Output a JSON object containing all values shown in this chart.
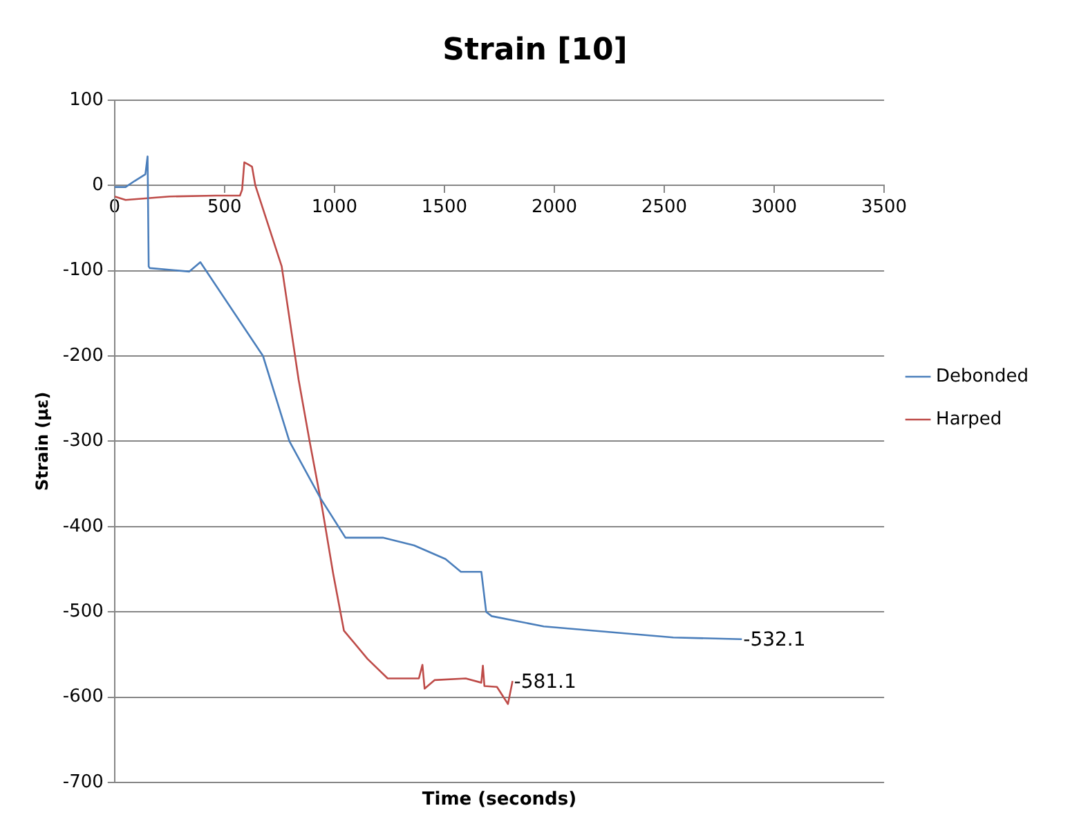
{
  "chart_data": {
    "type": "line",
    "title": "Strain [10]",
    "xlabel": "Time (seconds)",
    "ylabel": "Strain (µε)",
    "xlim": [
      0,
      3500
    ],
    "xticks": [
      0,
      500,
      1000,
      1500,
      2000,
      2500,
      3000,
      3500
    ],
    "ylim": [
      -700,
      100
    ],
    "yticks": [
      -700,
      -600,
      -500,
      -400,
      -300,
      -200,
      -100,
      0,
      100
    ],
    "grid": "y",
    "legend": "right",
    "marker": "none",
    "series": [
      {
        "name": "Debonded",
        "color": "#4a7ebb",
        "x": [
          0,
          50,
          90,
          140,
          150,
          155,
          160,
          340,
          390,
          675,
          795,
          937,
          1050,
          1220,
          1362,
          1505,
          1575,
          1668,
          1690,
          1715,
          1952,
          2541,
          2853
        ],
        "values": [
          -2,
          -2,
          5,
          13,
          34,
          -95,
          -97,
          -101,
          -90,
          -200,
          -300,
          -367,
          -413,
          -413,
          -422,
          -438,
          -453,
          -453,
          -500,
          -505,
          -517,
          -530,
          -532.1
        ],
        "value_labels": [
          null,
          null,
          null,
          null,
          null,
          null,
          null,
          null,
          null,
          null,
          null,
          null,
          null,
          null,
          null,
          null,
          null,
          null,
          null,
          null,
          null,
          null,
          "-532.1"
        ]
      },
      {
        "name": "Harped",
        "color": "#be4b48",
        "x": [
          0,
          50,
          250,
          460,
          570,
          580,
          590,
          605,
          625,
          640,
          760,
          837,
          887,
          944,
          994,
          1043,
          1150,
          1242,
          1384,
          1400,
          1410,
          1455,
          1597,
          1668,
          1675,
          1682,
          1739,
          1789,
          1810
        ],
        "values": [
          -13,
          -17,
          -13,
          -12,
          -12,
          -5,
          27,
          25,
          22,
          0,
          -95,
          -228,
          -300,
          -378,
          -455,
          -522,
          -555,
          -578,
          -578,
          -562,
          -590,
          -580,
          -578,
          -583,
          -563,
          -587,
          -588,
          -608,
          -581.1
        ],
        "value_labels": [
          null,
          null,
          null,
          null,
          null,
          null,
          null,
          null,
          null,
          null,
          null,
          null,
          null,
          null,
          null,
          null,
          null,
          null,
          null,
          null,
          null,
          null,
          null,
          null,
          null,
          null,
          null,
          null,
          "-581.1"
        ]
      }
    ]
  }
}
